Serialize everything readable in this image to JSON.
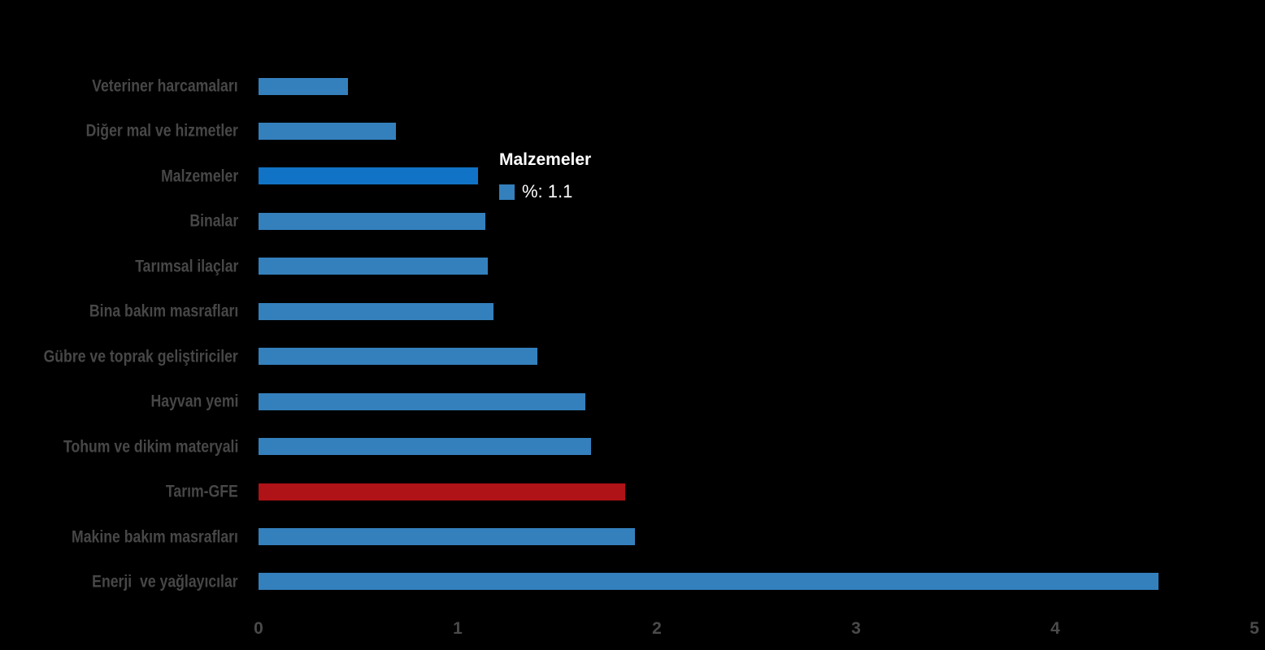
{
  "colors": {
    "background": "#000000",
    "bar_blue": "#3480BD",
    "bar_highlight_blue": "#1173C5",
    "bar_red": "#AF1217",
    "label_gray": "#474747",
    "tick_gray": "#4A4A4A",
    "tooltip_text": "#FFFFFF"
  },
  "tooltip": {
    "title": "Malzemeler",
    "value_label": "%: 1.1",
    "swatch_color": "#3480BD"
  },
  "chart_data": {
    "type": "bar",
    "orientation": "horizontal",
    "title": "",
    "xlabel": "",
    "ylabel": "",
    "xlim": [
      0,
      5
    ],
    "x_ticks": [
      0,
      1,
      2,
      3,
      4,
      5
    ],
    "grid": false,
    "value_unit": "%",
    "legend_position": "tooltip",
    "highlighted_category": "Malzemeler",
    "categories": [
      "Veteriner harcamaları",
      "Diğer mal ve hizmetler",
      "Malzemeler",
      "Binalar",
      "Tarımsal ilaçlar",
      "Bina bakım masrafları",
      "Gübre ve toprak geliştiriciler",
      "Hayvan yemi",
      "Tohum ve dikim materyali",
      "Tarım-GFE",
      "Makine bakım masrafları",
      "Enerji  ve yağlayıcılar"
    ],
    "values": [
      0.45,
      0.69,
      1.1,
      1.14,
      1.15,
      1.18,
      1.4,
      1.64,
      1.67,
      1.84,
      1.89,
      4.52
    ],
    "bar_color_keys": [
      "bar_blue",
      "bar_blue",
      "bar_highlight_blue",
      "bar_blue",
      "bar_blue",
      "bar_blue",
      "bar_blue",
      "bar_blue",
      "bar_blue",
      "bar_red",
      "bar_blue",
      "bar_blue"
    ]
  }
}
